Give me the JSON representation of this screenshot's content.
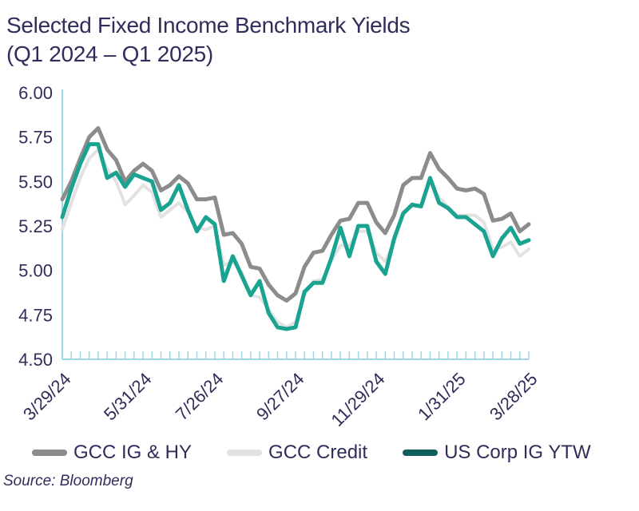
{
  "title_line1": "Selected Fixed Income Benchmark Yields",
  "title_line2": "(Q1 2024 – Q1 2025)",
  "source": "Source: Bloomberg",
  "chart_data": {
    "type": "line",
    "ylim": [
      4.5,
      6.0
    ],
    "yticks": [
      "6.00",
      "5.75",
      "5.50",
      "5.25",
      "5.00",
      "4.75",
      "4.50"
    ],
    "ytick_values": [
      6.0,
      5.75,
      5.5,
      5.25,
      5.0,
      4.75,
      4.5
    ],
    "xtick_labels": [
      "3/29/24",
      "5/31/24",
      "7/26/24",
      "9/27/24",
      "11/29/24",
      "1/31/25",
      "3/28/25"
    ],
    "xtick_indices": [
      0,
      9,
      17,
      26,
      35,
      44,
      52
    ],
    "n_points": 53,
    "grid": false,
    "legend_position": "bottom",
    "series": [
      {
        "name": "GCC IG & HY",
        "color": "#8c8c8c",
        "values": [
          5.4,
          5.5,
          5.63,
          5.75,
          5.8,
          5.68,
          5.62,
          5.5,
          5.56,
          5.6,
          5.56,
          5.45,
          5.48,
          5.53,
          5.49,
          5.4,
          5.4,
          5.41,
          5.2,
          5.21,
          5.15,
          5.02,
          5.01,
          4.92,
          4.86,
          4.83,
          4.87,
          5.02,
          5.1,
          5.11,
          5.2,
          5.28,
          5.29,
          5.38,
          5.38,
          5.27,
          5.21,
          5.31,
          5.48,
          5.52,
          5.52,
          5.66,
          5.57,
          5.52,
          5.46,
          5.45,
          5.46,
          5.43,
          5.28,
          5.29,
          5.32,
          5.22,
          5.26
        ]
      },
      {
        "name": "GCC Credit",
        "color": "#e2e2e2",
        "values": [
          5.23,
          5.38,
          5.52,
          5.63,
          5.68,
          5.57,
          5.5,
          5.37,
          5.42,
          5.48,
          5.44,
          5.3,
          5.34,
          5.38,
          5.33,
          5.24,
          5.23,
          5.25,
          5.03,
          5.05,
          4.99,
          4.86,
          4.85,
          4.78,
          4.71,
          4.68,
          4.71,
          4.86,
          4.94,
          4.95,
          5.06,
          5.14,
          5.14,
          5.22,
          5.22,
          5.1,
          5.05,
          5.16,
          5.33,
          5.36,
          5.36,
          5.5,
          5.41,
          5.36,
          5.31,
          5.31,
          5.31,
          5.27,
          5.12,
          5.13,
          5.16,
          5.08,
          5.12
        ]
      },
      {
        "name": "US Corp IG YTW",
        "color": "#1aa391",
        "values": [
          5.3,
          5.46,
          5.6,
          5.71,
          5.71,
          5.52,
          5.55,
          5.47,
          5.54,
          5.52,
          5.5,
          5.34,
          5.38,
          5.48,
          5.34,
          5.22,
          5.3,
          5.26,
          4.94,
          5.08,
          4.97,
          4.86,
          4.94,
          4.76,
          4.68,
          4.67,
          4.68,
          4.88,
          4.93,
          4.93,
          5.07,
          5.24,
          5.08,
          5.25,
          5.25,
          5.05,
          4.98,
          5.18,
          5.32,
          5.37,
          5.36,
          5.52,
          5.38,
          5.35,
          5.3,
          5.3,
          5.26,
          5.22,
          5.08,
          5.18,
          5.24,
          5.15,
          5.17
        ]
      }
    ]
  }
}
